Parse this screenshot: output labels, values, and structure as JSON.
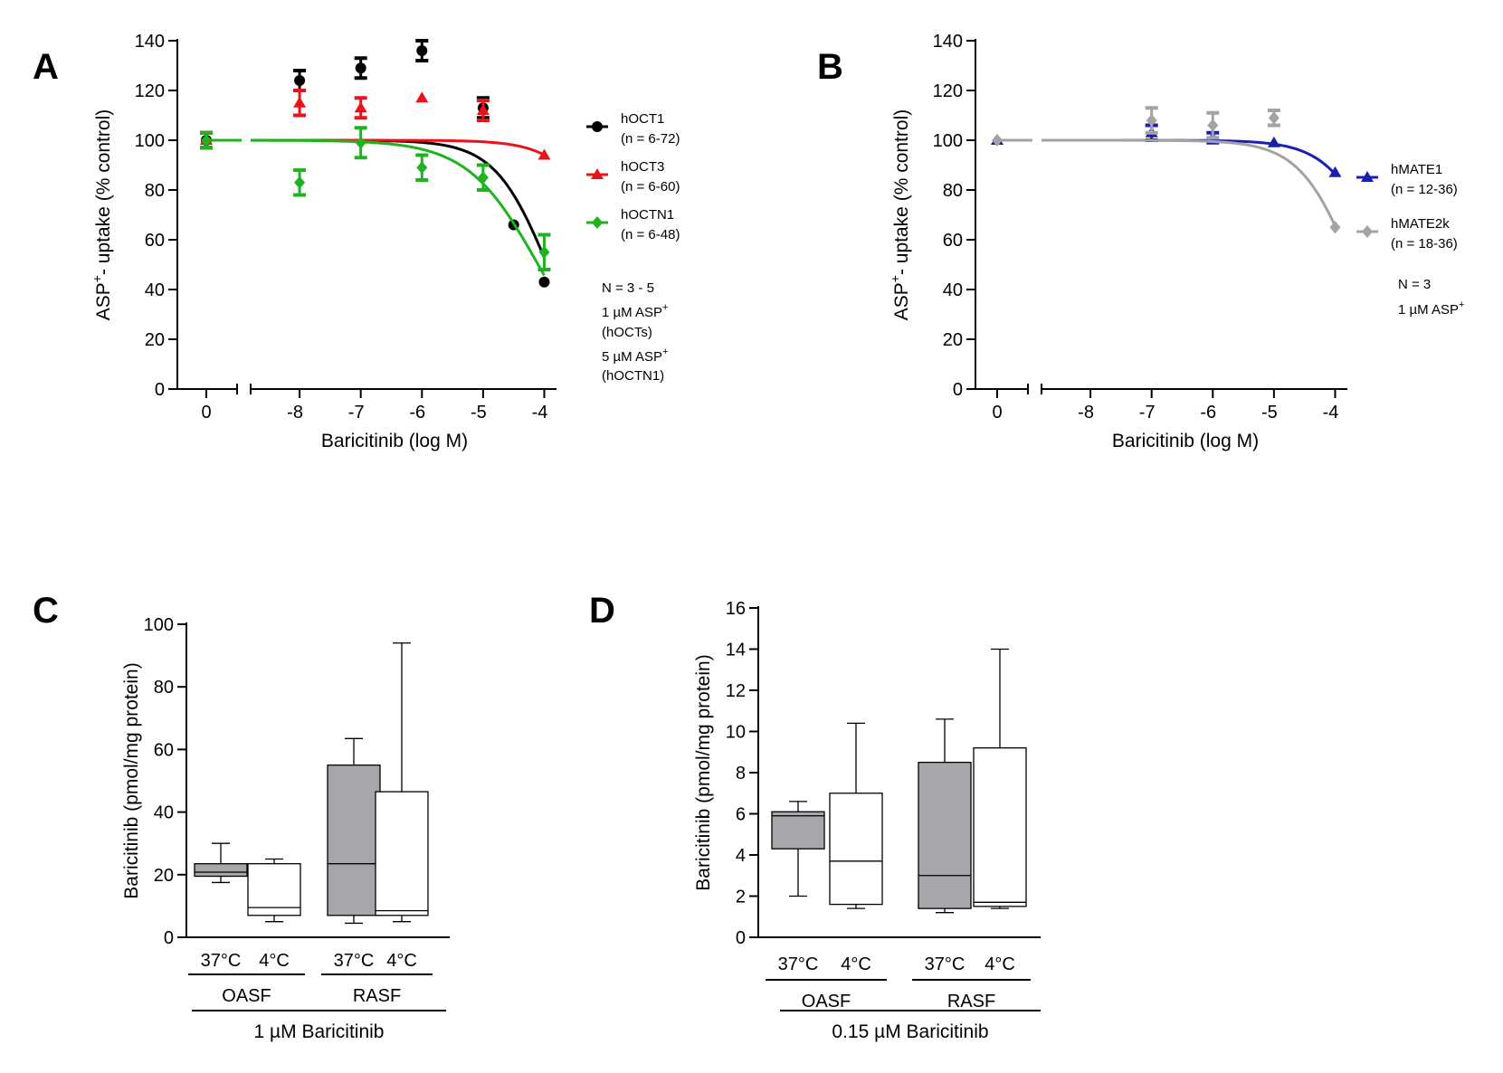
{
  "chart_data": [
    {
      "panel": "A",
      "type": "line",
      "ylabel_main": "ASP",
      "ylabel_sup": "+",
      "ylabel_rest": "- uptake (% control)",
      "xlabel": "Baricitinib (log M)",
      "ylim": [
        0,
        140
      ],
      "yticks": [
        0,
        20,
        40,
        60,
        80,
        100,
        120,
        140
      ],
      "xlim": [
        -8.8,
        -3.8
      ],
      "xticks": [
        -8,
        -7,
        -6,
        -5,
        -4
      ],
      "zero_tick": "0",
      "series": [
        {
          "name": "hOCT1",
          "n": "(n = 6-72)",
          "color": "#000000",
          "marker": "circle",
          "zero": {
            "mean": 100,
            "err": 3
          },
          "points": [
            [
              -8,
              124,
              4
            ],
            [
              -7,
              129,
              4
            ],
            [
              -6,
              136,
              4
            ],
            [
              -5,
              113,
              4
            ],
            [
              -4.5,
              66,
              0
            ],
            [
              -4,
              43,
              0
            ]
          ],
          "fit": {
            "top": 100,
            "bottom": 0,
            "logIC50": -3.95,
            "hill": 1
          }
        },
        {
          "name": "hOCT3",
          "n": "(n = 6-60)",
          "color": "#e8141b",
          "marker": "triangle",
          "zero": {
            "mean": 100,
            "err": 3
          },
          "points": [
            [
              -8,
              115,
              5
            ],
            [
              -7,
              113,
              4
            ],
            [
              -6,
              117,
              0
            ],
            [
              -5,
              112,
              4
            ],
            [
              -4,
              94,
              0
            ]
          ],
          "fit": {
            "top": 100,
            "bottom": 0,
            "logIC50": -2.8,
            "hill": 1
          }
        },
        {
          "name": "hOCTN1",
          "n": "(n = 6-48)",
          "color": "#1fb31f",
          "marker": "diamond",
          "zero": {
            "mean": 100,
            "err": 3
          },
          "points": [
            [
              -8,
              83,
              5
            ],
            [
              -7,
              99,
              6
            ],
            [
              -6,
              89,
              5
            ],
            [
              -5,
              85,
              5
            ],
            [
              -4,
              55,
              7
            ]
          ],
          "fit": {
            "top": 100,
            "bottom": 0,
            "logIC50": -4.1,
            "hill": 0.75
          }
        }
      ],
      "notes": [
        "N = 3 - 5",
        "1 µM ASP",
        "(hOCTs)",
        "5 µM ASP",
        "(hOCTN1)"
      ]
    },
    {
      "panel": "B",
      "type": "line",
      "ylabel_main": "ASP",
      "ylabel_sup": "+",
      "ylabel_rest": "- uptake (% control)",
      "xlabel": "Baricitinib (log M)",
      "ylim": [
        0,
        140
      ],
      "yticks": [
        0,
        20,
        40,
        60,
        80,
        100,
        120,
        140
      ],
      "xlim": [
        -8.8,
        -3.8
      ],
      "xticks": [
        -8,
        -7,
        -6,
        -5,
        -4
      ],
      "zero_tick": "0",
      "series": [
        {
          "name": "hMATE1",
          "n": "(n = 12-36)",
          "color": "#1a1fb0",
          "marker": "triangle",
          "zero": {
            "mean": 100,
            "err": 0
          },
          "points": [
            [
              -7,
              103,
              3
            ],
            [
              -6,
              101,
              2
            ],
            [
              -5,
              99,
              0
            ],
            [
              -4,
              87,
              0
            ]
          ],
          "fit": {
            "top": 100,
            "bottom": 0,
            "logIC50": -3.2,
            "hill": 1
          }
        },
        {
          "name": "hMATE2k",
          "n": "(n = 18-36)",
          "color": "#a3a3a3",
          "marker": "diamond",
          "zero": {
            "mean": 100,
            "err": 0
          },
          "points": [
            [
              -7,
              108,
              5
            ],
            [
              -6,
              106,
              5
            ],
            [
              -5,
              109,
              3
            ],
            [
              -4,
              65,
              0
            ]
          ],
          "fit": {
            "top": 100,
            "bottom": 0,
            "logIC50": -3.72,
            "hill": 1
          }
        }
      ],
      "notes": [
        "N = 3",
        "1 µM ASP"
      ]
    },
    {
      "panel": "C",
      "type": "box",
      "ylabel": "Baricitinib (pmol/mg protein)",
      "ylim": [
        0,
        100
      ],
      "yticks": [
        0,
        20,
        40,
        60,
        80,
        100
      ],
      "boxes": [
        {
          "label": "37°C",
          "group": "OASF",
          "fill": "#a7a7ab",
          "min": 17.5,
          "q1": 19.5,
          "median": 20.8,
          "q3": 23.5,
          "max": 30
        },
        {
          "label": "4°C",
          "group": "OASF",
          "fill": "#ffffff",
          "min": 5,
          "q1": 7,
          "median": 9.5,
          "q3": 23.5,
          "max": 25
        },
        {
          "label": "37°C",
          "group": "RASF",
          "fill": "#a7a7ab",
          "min": 4.5,
          "q1": 7,
          "median": 23.5,
          "q3": 55,
          "max": 63.5
        },
        {
          "label": "4°C",
          "group": "RASF",
          "fill": "#ffffff",
          "min": 5,
          "q1": 7,
          "median": 8.5,
          "q3": 46.5,
          "max": 94
        }
      ],
      "groups": [
        "OASF",
        "RASF"
      ],
      "condition": "1 µM Baricitinib"
    },
    {
      "panel": "D",
      "type": "box",
      "ylabel": "Baricitinib (pmol/mg protein)",
      "ylim": [
        0,
        16
      ],
      "yticks": [
        0,
        2,
        4,
        6,
        8,
        10,
        12,
        14,
        16
      ],
      "boxes": [
        {
          "label": "37°C",
          "group": "OASF",
          "fill": "#a7a7ab",
          "min": 2,
          "q1": 4.3,
          "median": 5.9,
          "q3": 6.1,
          "max": 6.6
        },
        {
          "label": "4°C",
          "group": "OASF",
          "fill": "#ffffff",
          "min": 1.4,
          "q1": 1.6,
          "median": 3.7,
          "q3": 7,
          "max": 10.4
        },
        {
          "label": "37°C",
          "group": "RASF",
          "fill": "#a7a7ab",
          "min": 1.2,
          "q1": 1.4,
          "median": 3,
          "q3": 8.5,
          "max": 10.6
        },
        {
          "label": "4°C",
          "group": "RASF",
          "fill": "#ffffff",
          "min": 1.4,
          "q1": 1.5,
          "median": 1.7,
          "q3": 9.2,
          "max": 14
        }
      ],
      "groups": [
        "OASF",
        "RASF"
      ],
      "condition": "0.15 µM Baricitinib"
    }
  ]
}
